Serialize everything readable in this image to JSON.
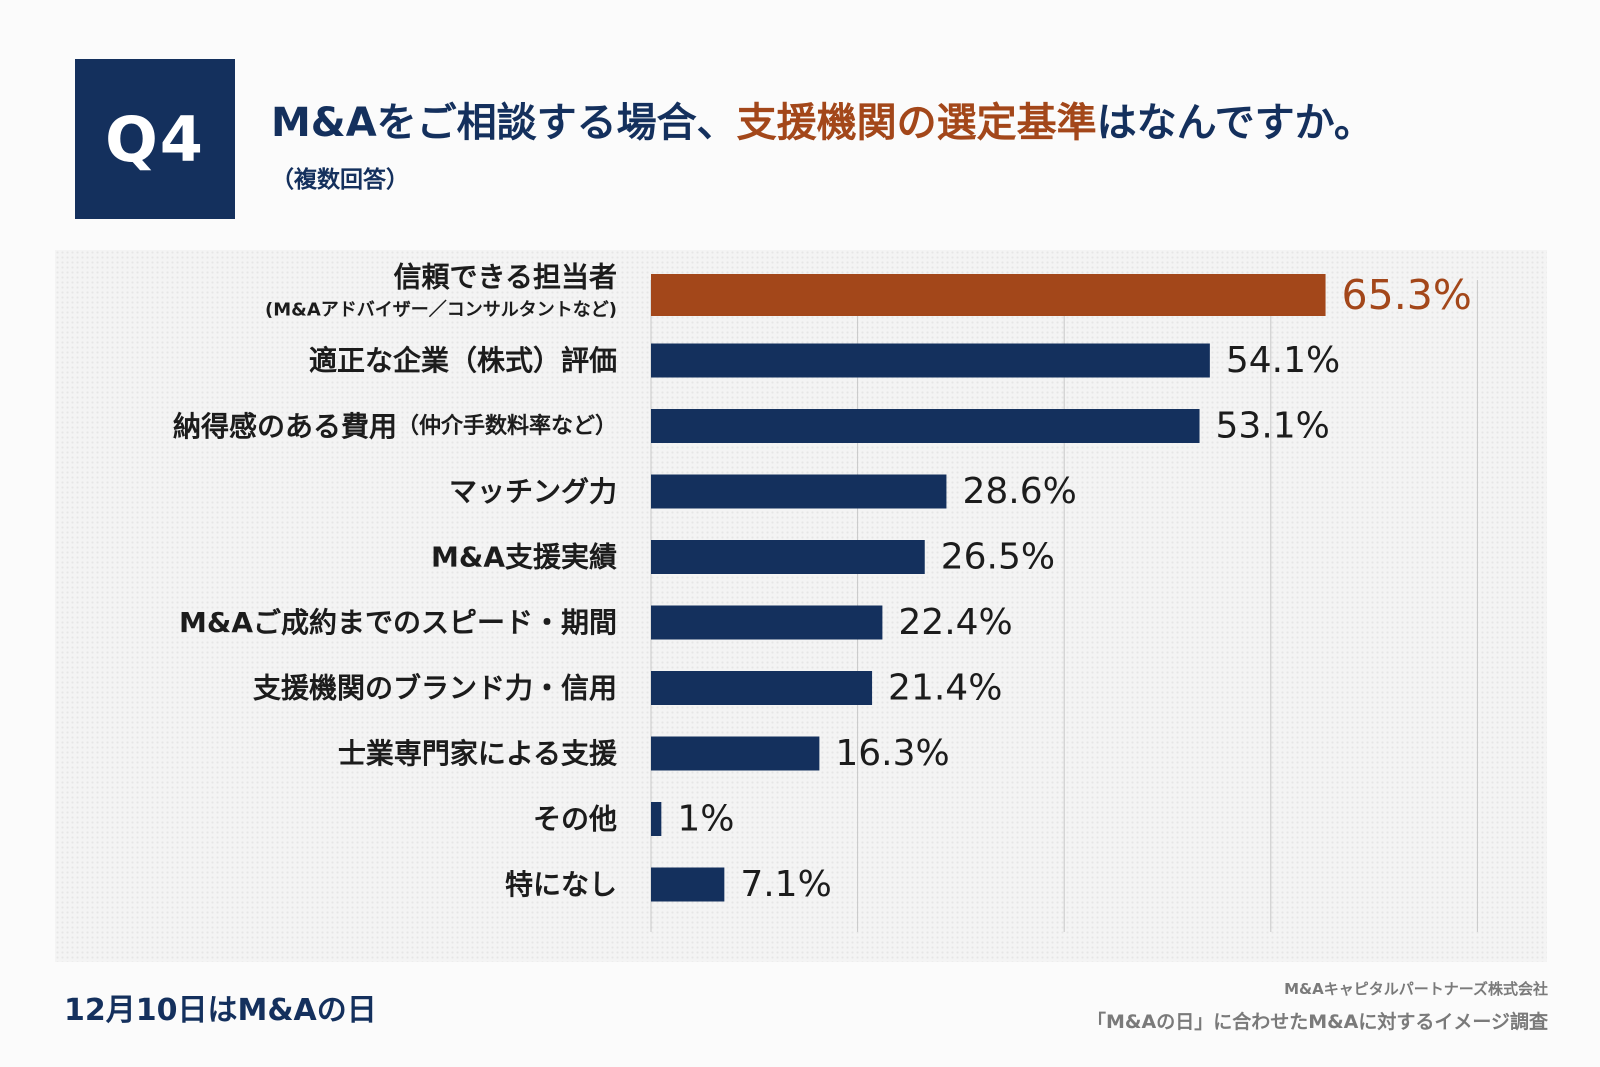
{
  "header": {
    "badge": "Q4",
    "title_part1": "M&Aをご相談する場合、",
    "title_accent": "支援機関の選定基準",
    "title_part2": "はなんですか。",
    "subtitle": "（複数回答）"
  },
  "colors": {
    "navy": "#14305d",
    "highlight": "#a3471a",
    "grid": "#c8c8c8"
  },
  "chart_data": {
    "type": "bar",
    "orientation": "horizontal",
    "title": "M&Aをご相談する場合、支援機関の選定基準はなんですか。",
    "xlabel": "",
    "ylabel": "",
    "xlim": [
      0,
      80
    ],
    "unit": "%",
    "grid": true,
    "categories": [
      {
        "label": "信頼できる担当者",
        "sublabel": "(M&Aアドバイザー／コンサルタントなど)",
        "value": 65.3,
        "display": "65.3%",
        "highlight": true
      },
      {
        "label": "適正な企業（株式）評価",
        "value": 54.1,
        "display": "54.1%"
      },
      {
        "label": "納得感のある費用",
        "label_note": "（仲介手数料率など）",
        "value": 53.1,
        "display": "53.1%"
      },
      {
        "label": "マッチング力",
        "value": 28.6,
        "display": "28.6%"
      },
      {
        "label": "M&A支援実績",
        "value": 26.5,
        "display": "26.5%"
      },
      {
        "label": "M&Aご成約までのスピード・期間",
        "value": 22.4,
        "display": "22.4%"
      },
      {
        "label": "支援機関のブランド力・信用",
        "value": 21.4,
        "display": "21.4%"
      },
      {
        "label": "士業専門家による支援",
        "value": 16.3,
        "display": "16.3%"
      },
      {
        "label": "その他",
        "value": 1,
        "display": "1%"
      },
      {
        "label": "特になし",
        "value": 7.1,
        "display": "7.1%"
      }
    ]
  },
  "footer": {
    "campaign": "12月10日はM&Aの日",
    "company": "M&Aキャピタルパートナーズ株式会社",
    "survey": "「M&Aの日」に合わせたM&Aに対するイメージ調査"
  }
}
